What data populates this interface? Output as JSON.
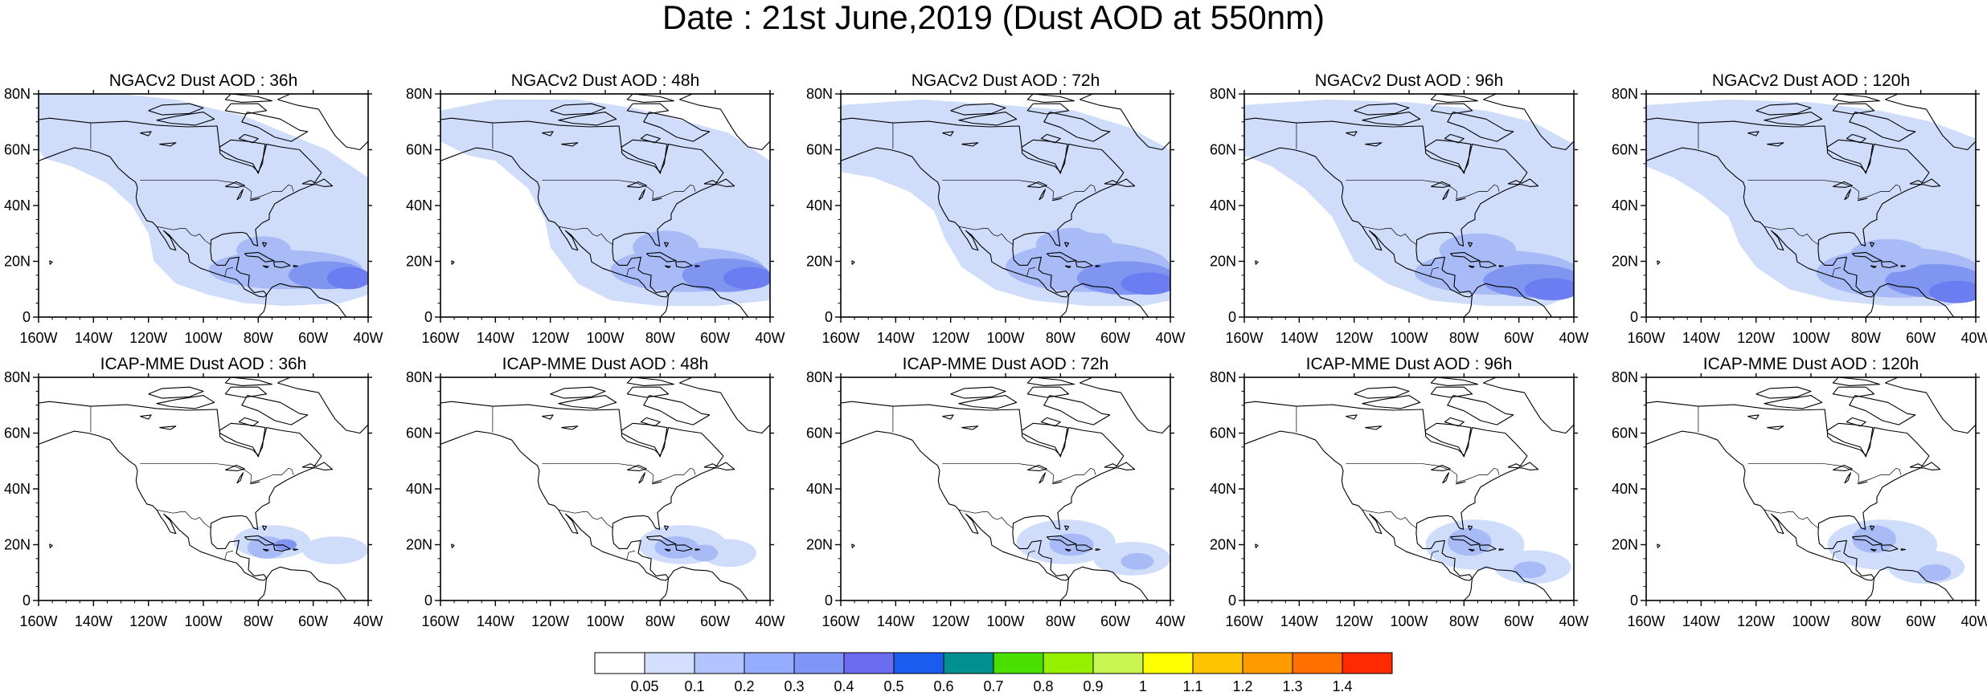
{
  "title": "Date : 21st June,2019 (Dust AOD at 550nm)",
  "lon_ticks": [
    "160W",
    "140W",
    "120W",
    "100W",
    "80W",
    "60W",
    "40W"
  ],
  "lat_ticks": [
    "0",
    "20N",
    "40N",
    "60N",
    "80N"
  ],
  "rows": [
    {
      "model": "NGACv2",
      "titles": [
        "NGACv2 Dust AOD : 36h",
        "NGACv2 Dust AOD : 48h",
        "NGACv2 Dust AOD : 72h",
        "NGACv2 Dust AOD : 96h",
        "NGACv2 Dust AOD : 120h"
      ]
    },
    {
      "model": "ICAP-MME",
      "titles": [
        "ICAP-MME Dust AOD : 36h",
        "ICAP-MME Dust AOD : 48h",
        "ICAP-MME Dust AOD : 72h",
        "ICAP-MME Dust AOD : 96h",
        "ICAP-MME Dust AOD : 120h"
      ]
    }
  ],
  "colorbar": {
    "labels": [
      "0.05",
      "0.1",
      "0.2",
      "0.3",
      "0.4",
      "0.5",
      "0.6",
      "0.7",
      "0.8",
      "0.9",
      "1",
      "1.1",
      "1.2",
      "1.3",
      "1.4"
    ],
    "colors": [
      "#ffffff",
      "#d4deff",
      "#b3c3ff",
      "#96acff",
      "#7f95f7",
      "#6b6cf0",
      "#1a5cf0",
      "#009090",
      "#49e000",
      "#95f000",
      "#c8f550",
      "#ffff00",
      "#ffc400",
      "#ff9b00",
      "#ff7000",
      "#ff2b00"
    ]
  },
  "map_colors": {
    "background": "#cfdcfa",
    "mid": "#a8bbf6",
    "dense": "#7f95f0",
    "coast": "#000000"
  }
}
